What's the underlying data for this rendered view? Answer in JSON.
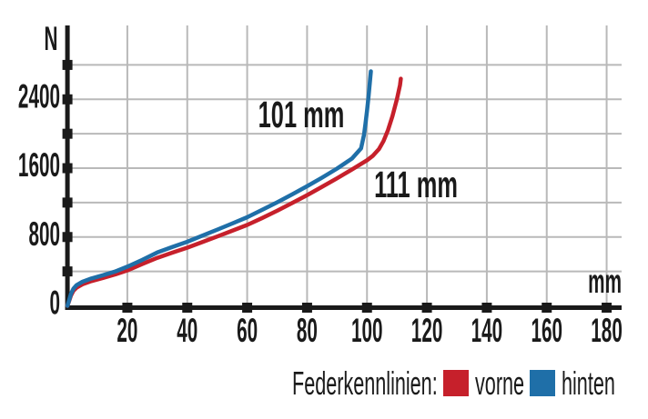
{
  "chart_data": {
    "type": "line",
    "title": "",
    "xlabel": "mm",
    "ylabel": "N",
    "x_range": [
      0,
      186
    ],
    "y_range": [
      0,
      3260
    ],
    "x_ticks": [
      20,
      40,
      60,
      80,
      100,
      120,
      140,
      160,
      180
    ],
    "y_ticks": [
      400,
      800,
      1200,
      1600,
      2000,
      2400,
      2800
    ],
    "y_tick_labels": [
      [
        0,
        "0"
      ],
      [
        800,
        "800"
      ],
      [
        1600,
        "1600"
      ],
      [
        2400,
        "2400"
      ]
    ],
    "grid": true,
    "legend_position": "bottom-right",
    "series": [
      {
        "name": "vorne",
        "color": "#c6202b",
        "annotation": "111 mm",
        "points": [
          [
            0,
            0
          ],
          [
            0.6,
            60
          ],
          [
            1.2,
            120
          ],
          [
            2,
            175
          ],
          [
            3,
            210
          ],
          [
            5,
            250
          ],
          [
            8,
            287
          ],
          [
            12,
            325
          ],
          [
            16,
            366
          ],
          [
            20,
            412
          ],
          [
            25,
            487
          ],
          [
            30,
            558
          ],
          [
            35,
            618
          ],
          [
            40,
            676
          ],
          [
            45,
            740
          ],
          [
            50,
            806
          ],
          [
            55,
            872
          ],
          [
            60,
            940
          ],
          [
            65,
            1020
          ],
          [
            70,
            1105
          ],
          [
            75,
            1195
          ],
          [
            80,
            1287
          ],
          [
            85,
            1384
          ],
          [
            90,
            1482
          ],
          [
            95,
            1585
          ],
          [
            100,
            1692
          ],
          [
            102,
            1745
          ],
          [
            104,
            1822
          ],
          [
            105.5,
            1915
          ],
          [
            107,
            2042
          ],
          [
            108.5,
            2205
          ],
          [
            110,
            2405
          ],
          [
            111,
            2565
          ],
          [
            111.3,
            2640
          ]
        ]
      },
      {
        "name": "hinten",
        "color": "#1f6fa8",
        "annotation": "101 mm",
        "points": [
          [
            0,
            0
          ],
          [
            0.6,
            70
          ],
          [
            1.2,
            140
          ],
          [
            2,
            200
          ],
          [
            3,
            240
          ],
          [
            5,
            280
          ],
          [
            8,
            318
          ],
          [
            12,
            357
          ],
          [
            16,
            400
          ],
          [
            20,
            455
          ],
          [
            25,
            535
          ],
          [
            30,
            620
          ],
          [
            35,
            683
          ],
          [
            40,
            745
          ],
          [
            45,
            815
          ],
          [
            50,
            885
          ],
          [
            55,
            957
          ],
          [
            60,
            1030
          ],
          [
            65,
            1115
          ],
          [
            70,
            1203
          ],
          [
            75,
            1295
          ],
          [
            80,
            1390
          ],
          [
            85,
            1490
          ],
          [
            90,
            1595
          ],
          [
            95,
            1712
          ],
          [
            98,
            1830
          ],
          [
            99,
            1990
          ],
          [
            99.5,
            2120
          ],
          [
            100,
            2270
          ],
          [
            100.5,
            2430
          ],
          [
            101,
            2610
          ],
          [
            101.3,
            2725
          ]
        ]
      }
    ],
    "annotations": [
      {
        "text": "101 mm",
        "series": "hinten"
      },
      {
        "text": "111 mm",
        "series": "vorne"
      }
    ]
  },
  "axes": {
    "y_unit_label": "N",
    "x_unit_label": "mm"
  },
  "legend": {
    "title": "Federkennlinien:",
    "items": [
      {
        "label": "vorne",
        "color": "#c6202b"
      },
      {
        "label": "hinten",
        "color": "#1f6fa8"
      }
    ]
  },
  "style_colors": {
    "grid": "#b9b9b9",
    "axis": "#1a1a1a",
    "background": "#ffffff"
  }
}
